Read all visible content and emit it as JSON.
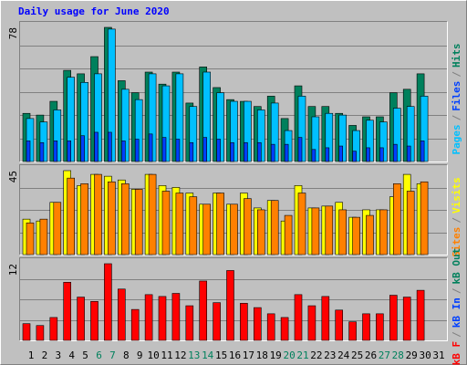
{
  "chart_data": [
    {
      "type": "bar",
      "title": "Daily usage for June 2020",
      "ylim": [
        0,
        78
      ],
      "yticks": [
        78
      ],
      "legend_separator": "/",
      "series": [
        {
          "name": "Pages",
          "color": "#00C0FF",
          "values": [
            25,
            23,
            30,
            49,
            46,
            51,
            77,
            42,
            36,
            51,
            44,
            51,
            32,
            52,
            40,
            35,
            35,
            30,
            34,
            18,
            38,
            26,
            28,
            27,
            18,
            24,
            23,
            31,
            32,
            38,
            0
          ]
        },
        {
          "name": "Files",
          "color": "#0040FF",
          "values": [
            12,
            11,
            12,
            12,
            15,
            17,
            17,
            12,
            13,
            16,
            14,
            13,
            11,
            14,
            13,
            11,
            11,
            11,
            10,
            10,
            14,
            7,
            8,
            9,
            6,
            8,
            8,
            10,
            9,
            12,
            0
          ]
        },
        {
          "name": "Hits",
          "color": "#00805C",
          "values": [
            28,
            27,
            35,
            53,
            51,
            61,
            78,
            47,
            40,
            52,
            45,
            52,
            34,
            55,
            43,
            36,
            35,
            32,
            38,
            25,
            44,
            32,
            32,
            28,
            21,
            26,
            26,
            40,
            42,
            51,
            0
          ]
        }
      ]
    },
    {
      "type": "bar",
      "ylim": [
        0,
        45
      ],
      "yticks": [
        45
      ],
      "legend_separator": "/",
      "series": [
        {
          "name": "Sites",
          "color": "#FF8000",
          "values": [
            17,
            19,
            28,
            41,
            38,
            43,
            39,
            38,
            35,
            43,
            34,
            33,
            31,
            27,
            33,
            27,
            30,
            24,
            29,
            21,
            33,
            25,
            26,
            24,
            20,
            21,
            24,
            38,
            34,
            39,
            0
          ]
        },
        {
          "name": "Visits",
          "color": "#FFFF00",
          "values": [
            19,
            18,
            28,
            45,
            37,
            43,
            42,
            40,
            35,
            43,
            37,
            36,
            33,
            27,
            33,
            27,
            33,
            25,
            29,
            18,
            37,
            25,
            26,
            28,
            20,
            24,
            24,
            31,
            43,
            38,
            0
          ]
        }
      ]
    },
    {
      "type": "bar",
      "ylim": [
        0,
        12.4
      ],
      "yticks": [
        {
          "value": 12.4,
          "label": "12"
        }
      ],
      "legend_separator": "/",
      "categories": [
        "1",
        "2",
        "3",
        "4",
        "5",
        "6",
        "7",
        "8",
        "9",
        "10",
        "11",
        "12",
        "13",
        "14",
        "15",
        "16",
        "17",
        "18",
        "19",
        "20",
        "21",
        "22",
        "23",
        "24",
        "25",
        "26",
        "27",
        "28",
        "29",
        "30",
        "31"
      ],
      "category_colors": [
        "#000000",
        "#000000",
        "#000000",
        "#000000",
        "#000000",
        "#00805C",
        "#00805C",
        "#000000",
        "#000000",
        "#000000",
        "#000000",
        "#000000",
        "#00805C",
        "#00805C",
        "#000000",
        "#000000",
        "#000000",
        "#000000",
        "#000000",
        "#00805C",
        "#00805C",
        "#000000",
        "#000000",
        "#000000",
        "#000000",
        "#000000",
        "#00805C",
        "#00805C",
        "#000000",
        "#000000",
        "#000000"
      ],
      "series": [
        {
          "name": "kB F",
          "color": "#FF0000",
          "values": [
            2.7,
            2.4,
            3.7,
            9.4,
            7,
            6.3,
            12.4,
            8.3,
            5,
            7.4,
            7.1,
            7.6,
            5.6,
            9.6,
            6.1,
            11.3,
            6,
            5.3,
            4.3,
            3.7,
            7.4,
            5.6,
            7.1,
            4.9,
            3,
            4.3,
            4.3,
            7.3,
            7,
            8.1,
            0
          ]
        },
        {
          "name": "kB In",
          "color": "#0040FF"
        },
        {
          "name": "kB Out",
          "color": "#00805C"
        }
      ]
    }
  ]
}
